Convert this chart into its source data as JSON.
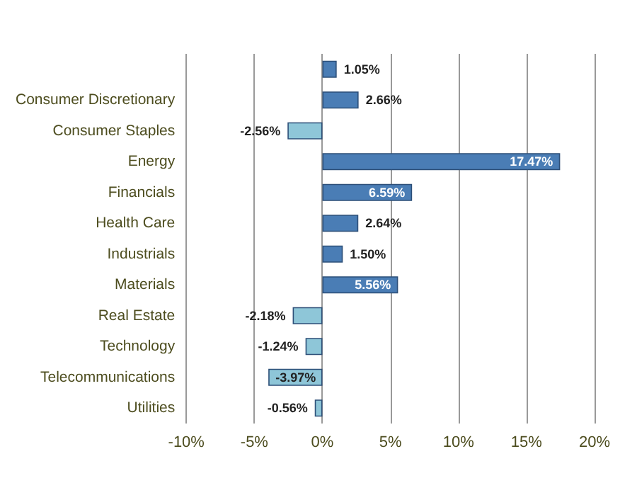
{
  "chart_data": {
    "type": "bar",
    "orientation": "horizontal",
    "categories": [
      null,
      "Consumer Discretionary",
      "Consumer Staples",
      "Energy",
      "Financials",
      "Health Care",
      "Industrials",
      "Materials",
      "Real Estate",
      "Technology",
      "Telecommunications",
      "Utilities"
    ],
    "values": [
      1.05,
      2.66,
      -2.56,
      17.47,
      6.59,
      2.64,
      1.5,
      5.56,
      -2.18,
      -1.24,
      -3.97,
      -0.56
    ],
    "value_labels": [
      "1.05%",
      "2.66%",
      "-2.56%",
      "17.47%",
      "6.59%",
      "2.64%",
      "1.50%",
      "5.56%",
      "-2.18%",
      "-1.24%",
      "-3.97%",
      "-0.56%"
    ],
    "colors": [
      "#4a7db5",
      "#4a7db5",
      "#8ec6d8",
      "#4a7db5",
      "#4a7db5",
      "#4a7db5",
      "#4a7db5",
      "#4a7db5",
      "#8ec6d8",
      "#8ec6d8",
      "#8ec6d8",
      "#8ec6d8"
    ],
    "xlim": [
      -10,
      20
    ],
    "xticks": [
      {
        "value": -10,
        "label": "-10%"
      },
      {
        "value": -5,
        "label": "-5%"
      },
      {
        "value": 0,
        "label": "0%"
      },
      {
        "value": 5,
        "label": "5%"
      },
      {
        "value": 10,
        "label": "10%"
      },
      {
        "value": 15,
        "label": "15%"
      },
      {
        "value": 20,
        "label": "20%"
      }
    ],
    "grid": "x"
  }
}
